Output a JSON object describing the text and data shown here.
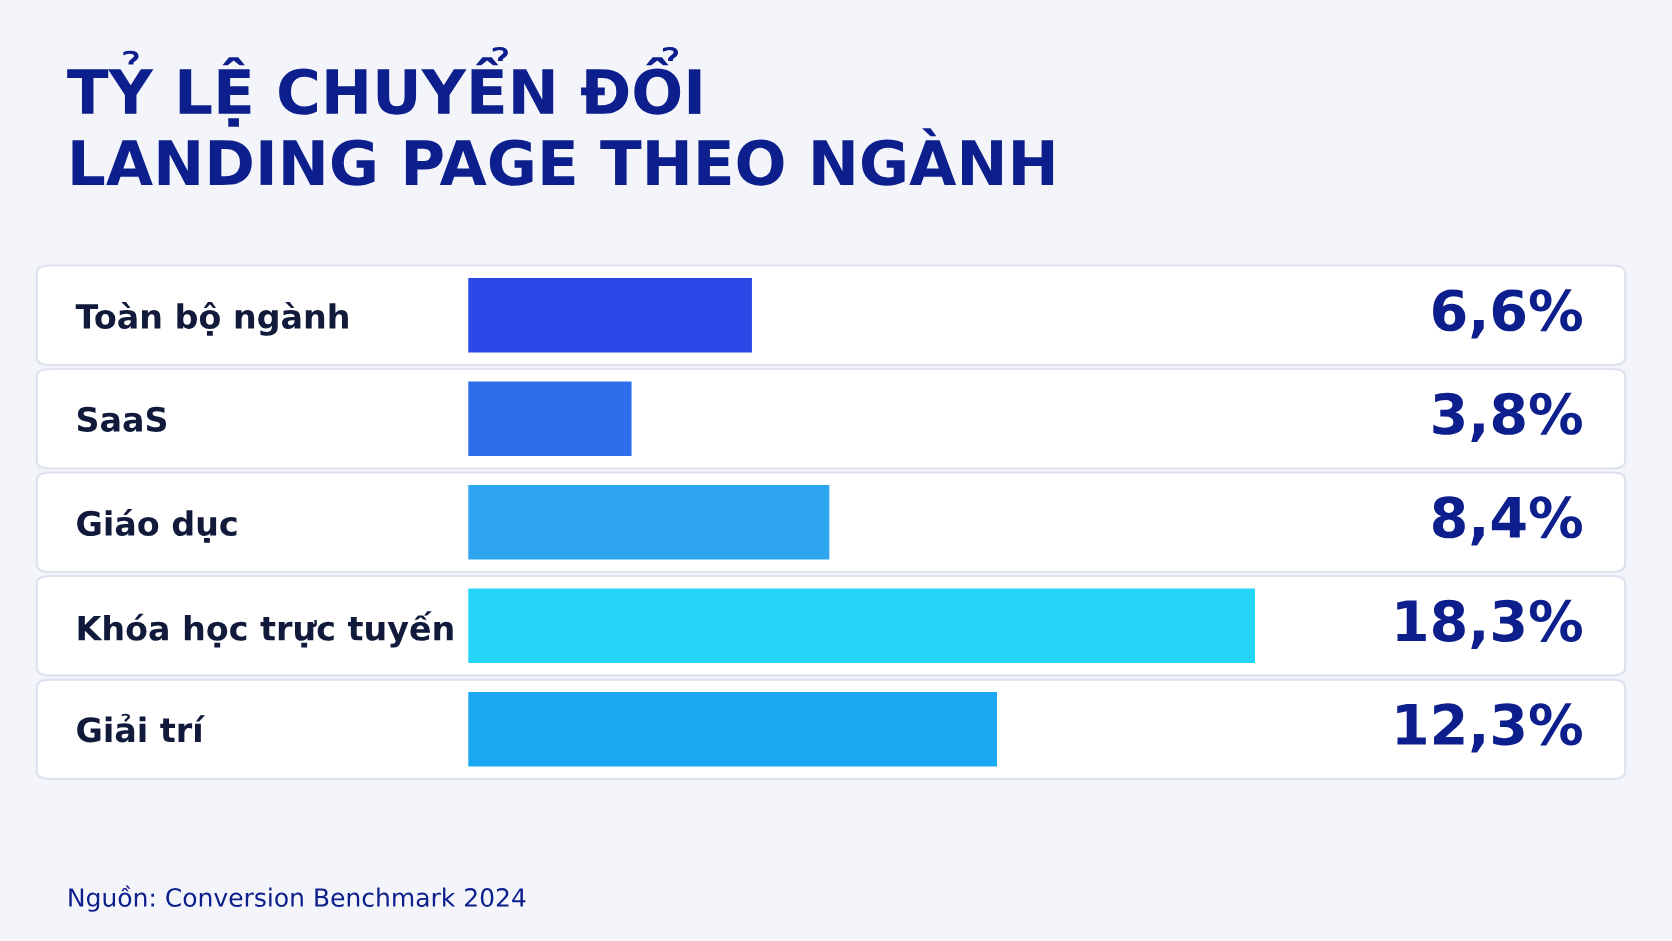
{
  "chart_data": {
    "type": "bar",
    "orientation": "horizontal",
    "title": "TỶ LỆ CHUYỂN ĐỔI\nLANDING PAGE THEO NGÀNH",
    "categories": [
      "Toàn bộ ngành",
      "SaaS",
      "Giáo dục",
      "Khóa học trực tuyến",
      "Giải trí"
    ],
    "values": [
      6.6,
      3.8,
      8.4,
      18.3,
      12.3
    ],
    "colors": [
      "#2a48e6",
      "#2c6ee9",
      "#2ea6ef",
      "#24d4f6",
      "#1aa8f3"
    ],
    "value_labels": [
      "6,6%",
      "3,8%",
      "8,4%",
      "18,3%",
      "12,3%"
    ],
    "annotations": [
      "Nguồn: Conversion Benchmark 2024"
    ]
  }
}
